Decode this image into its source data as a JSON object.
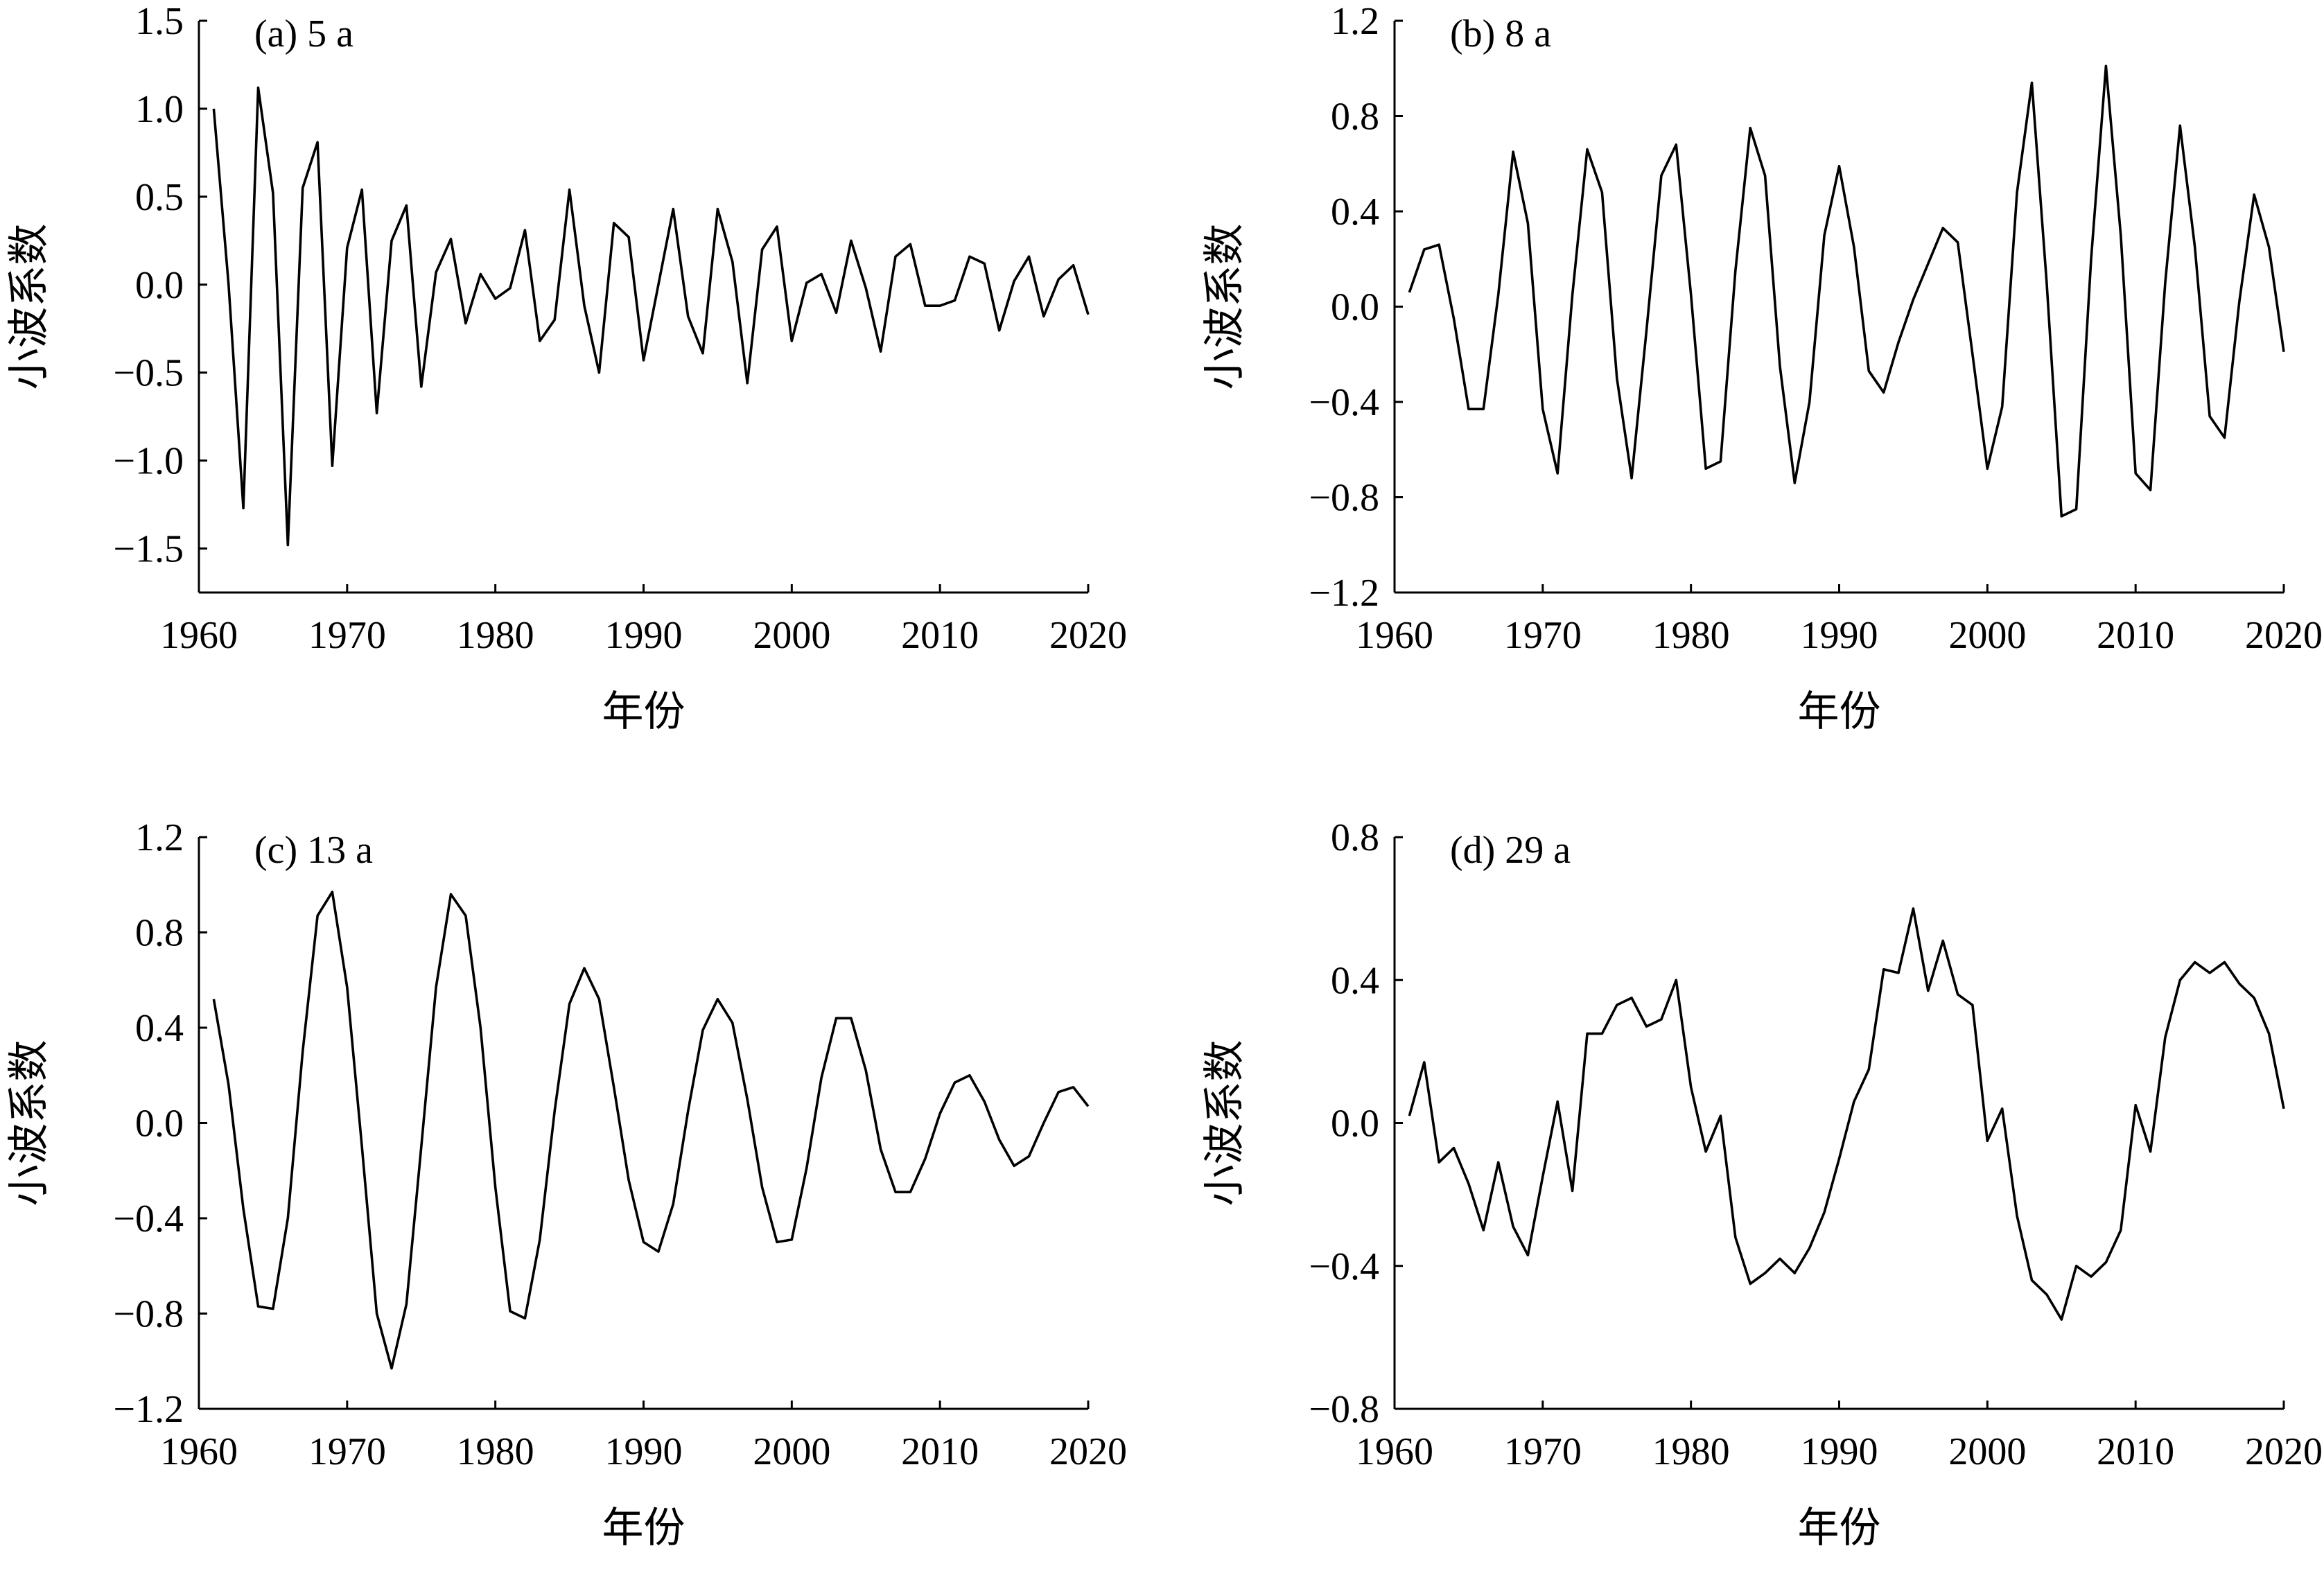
{
  "chart_data": [
    {
      "type": "line",
      "panel_label": "(a) 5 a",
      "xlabel": "年份",
      "ylabel": "小波系数",
      "xlim": [
        1960,
        2020
      ],
      "ylim": [
        -1.75,
        1.5
      ],
      "xticks": [
        1960,
        1970,
        1980,
        1990,
        2000,
        2010,
        2020
      ],
      "xtick_labels": [
        "1960",
        "1970",
        "1980",
        "1990",
        "2000",
        "2010",
        "2020"
      ],
      "yticks": [
        -1.5,
        -1.0,
        -0.5,
        0.0,
        0.5,
        1.0,
        1.5
      ],
      "ytick_labels": [
        "−1.5",
        "−1.0",
        "−0.5",
        "0.0",
        "0.5",
        "1.0",
        "1.5"
      ],
      "x_start": 1961,
      "values": [
        1.0,
        0.0,
        -1.27,
        1.12,
        0.52,
        -1.48,
        0.55,
        0.81,
        -1.03,
        0.21,
        0.54,
        -0.73,
        0.25,
        0.45,
        -0.58,
        0.07,
        0.26,
        -0.22,
        0.06,
        -0.08,
        -0.02,
        0.31,
        -0.32,
        -0.2,
        0.54,
        -0.12,
        -0.5,
        0.35,
        0.27,
        -0.43,
        0.0,
        0.43,
        -0.18,
        -0.39,
        0.43,
        0.13,
        -0.56,
        0.2,
        0.33,
        -0.32,
        0.01,
        0.06,
        -0.16,
        0.25,
        -0.02,
        -0.38,
        0.16,
        0.23,
        -0.12,
        -0.12,
        -0.09,
        0.16,
        0.12,
        -0.26,
        0.02,
        0.16,
        -0.18,
        0.03,
        0.11,
        -0.17
      ]
    },
    {
      "type": "line",
      "panel_label": "(b) 8 a",
      "xlabel": "年份",
      "ylabel": "小波系数",
      "xlim": [
        1960,
        2020
      ],
      "ylim": [
        -1.2,
        1.2
      ],
      "xticks": [
        1960,
        1970,
        1980,
        1990,
        2000,
        2010,
        2020
      ],
      "xtick_labels": [
        "1960",
        "1970",
        "1980",
        "1990",
        "2000",
        "2010",
        "2020"
      ],
      "yticks": [
        -1.2,
        -0.8,
        -0.4,
        0.0,
        0.4,
        0.8,
        1.2
      ],
      "ytick_labels": [
        "−1.2",
        "−0.8",
        "−0.4",
        "0.0",
        "0.4",
        "0.8",
        "1.2"
      ],
      "x_start": 1961,
      "values": [
        0.06,
        0.24,
        0.26,
        -0.05,
        -0.43,
        -0.43,
        0.05,
        0.65,
        0.35,
        -0.43,
        -0.7,
        0.05,
        0.66,
        0.48,
        -0.3,
        -0.72,
        -0.1,
        0.55,
        0.68,
        0.05,
        -0.68,
        -0.65,
        0.15,
        0.75,
        0.55,
        -0.25,
        -0.74,
        -0.4,
        0.3,
        0.59,
        0.25,
        -0.27,
        -0.36,
        -0.15,
        0.03,
        0.18,
        0.33,
        0.27,
        -0.2,
        -0.68,
        -0.42,
        0.48,
        0.94,
        0.1,
        -0.88,
        -0.85,
        0.2,
        1.01,
        0.3,
        -0.7,
        -0.77,
        0.1,
        0.76,
        0.25,
        -0.46,
        -0.55,
        0.02,
        0.47,
        0.25,
        -0.19
      ]
    },
    {
      "type": "line",
      "panel_label": "(c) 13 a",
      "xlabel": "年份",
      "ylabel": "小波系数",
      "xlim": [
        1960,
        2020
      ],
      "ylim": [
        -1.2,
        1.2
      ],
      "xticks": [
        1960,
        1970,
        1980,
        1990,
        2000,
        2010,
        2020
      ],
      "xtick_labels": [
        "1960",
        "1970",
        "1980",
        "1990",
        "2000",
        "2010",
        "2020"
      ],
      "yticks": [
        -1.2,
        -0.8,
        -0.4,
        0.0,
        0.4,
        0.8,
        1.2
      ],
      "ytick_labels": [
        "−1.2",
        "−0.8",
        "−0.4",
        "0.0",
        "0.4",
        "0.8",
        "1.2"
      ],
      "x_start": 1961,
      "values": [
        0.52,
        0.16,
        -0.36,
        -0.77,
        -0.78,
        -0.4,
        0.3,
        0.87,
        0.97,
        0.57,
        -0.1,
        -0.8,
        -1.03,
        -0.76,
        -0.1,
        0.57,
        0.96,
        0.87,
        0.4,
        -0.27,
        -0.79,
        -0.82,
        -0.49,
        0.05,
        0.5,
        0.65,
        0.52,
        0.15,
        -0.24,
        -0.5,
        -0.54,
        -0.34,
        0.05,
        0.39,
        0.52,
        0.42,
        0.1,
        -0.27,
        -0.5,
        -0.49,
        -0.19,
        0.19,
        0.44,
        0.44,
        0.22,
        -0.11,
        -0.29,
        -0.29,
        -0.15,
        0.04,
        0.17,
        0.2,
        0.09,
        -0.07,
        -0.18,
        -0.14,
        0.0,
        0.13,
        0.15,
        0.07
      ]
    },
    {
      "type": "line",
      "panel_label": "(d) 29 a",
      "xlabel": "年份",
      "ylabel": "小波系数",
      "xlim": [
        1960,
        2020
      ],
      "ylim": [
        -0.8,
        0.8
      ],
      "xticks": [
        1960,
        1970,
        1980,
        1990,
        2000,
        2010,
        2020
      ],
      "xtick_labels": [
        "1960",
        "1970",
        "1980",
        "1990",
        "2000",
        "2010",
        "2020"
      ],
      "yticks": [
        -0.8,
        -0.4,
        0.0,
        0.4,
        0.8
      ],
      "ytick_labels": [
        "−0.8",
        "−0.4",
        "0.0",
        "0.4",
        "0.8"
      ],
      "x_start": 1961,
      "values": [
        0.02,
        0.17,
        -0.11,
        -0.07,
        -0.17,
        -0.3,
        -0.11,
        -0.29,
        -0.37,
        -0.15,
        0.06,
        -0.19,
        0.25,
        0.25,
        0.33,
        0.35,
        0.27,
        0.29,
        0.4,
        0.1,
        -0.08,
        0.02,
        -0.32,
        -0.45,
        -0.42,
        -0.38,
        -0.42,
        -0.35,
        -0.25,
        -0.1,
        0.06,
        0.15,
        0.43,
        0.42,
        0.6,
        0.37,
        0.51,
        0.36,
        0.33,
        -0.05,
        0.04,
        -0.26,
        -0.44,
        -0.48,
        -0.55,
        -0.4,
        -0.43,
        -0.39,
        -0.3,
        0.05,
        -0.08,
        0.24,
        0.4,
        0.45,
        0.42,
        0.45,
        0.39,
        0.35,
        0.25,
        0.04
      ]
    }
  ]
}
